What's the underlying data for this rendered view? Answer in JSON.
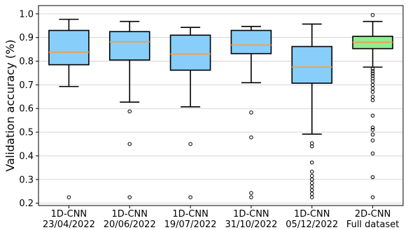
{
  "chart_data": {
    "type": "box",
    "title": "",
    "xlabel": "",
    "ylabel": "Validation accuracy (%)",
    "ylim": [
      0.19,
      1.035
    ],
    "y_ticks": [
      "0.2",
      "0.3",
      "0.4",
      "0.5",
      "0.6",
      "0.7",
      "0.8",
      "0.9",
      "1.0"
    ],
    "grid": "horizontal",
    "categories": [
      [
        "1D-CNN",
        "23/04/2022"
      ],
      [
        "1D-CNN",
        "20/06/2022"
      ],
      [
        "1D-CNN",
        "19/07/2022"
      ],
      [
        "1D-CNN",
        "31/10/2022"
      ],
      [
        "1D-CNN",
        "05/12/2022"
      ],
      [
        "2D-CNN",
        "Full dataset"
      ]
    ],
    "boxes": [
      {
        "whisker_low": 0.693,
        "q1": 0.785,
        "median": 0.838,
        "q3": 0.93,
        "whisker_high": 0.977,
        "outliers": [
          0.225
        ],
        "color": "#87cefa"
      },
      {
        "whisker_low": 0.627,
        "q1": 0.805,
        "median": 0.882,
        "q3": 0.925,
        "whisker_high": 0.968,
        "outliers": [
          0.588,
          0.45,
          0.225
        ],
        "color": "#87cefa"
      },
      {
        "whisker_low": 0.607,
        "q1": 0.762,
        "median": 0.83,
        "q3": 0.91,
        "whisker_high": 0.943,
        "outliers": [
          0.45,
          0.225
        ],
        "color": "#87cefa"
      },
      {
        "whisker_low": 0.709,
        "q1": 0.832,
        "median": 0.868,
        "q3": 0.93,
        "whisker_high": 0.947,
        "outliers": [
          0.583,
          0.478,
          0.243,
          0.225
        ],
        "color": "#87cefa"
      },
      {
        "whisker_low": 0.492,
        "q1": 0.707,
        "median": 0.775,
        "q3": 0.862,
        "whisker_high": 0.957,
        "outliers": [
          0.453,
          0.44,
          0.372,
          0.333,
          0.315,
          0.3,
          0.285,
          0.27,
          0.255,
          0.24,
          0.225
        ],
        "color": "#87cefa"
      },
      {
        "whisker_low": 0.775,
        "q1": 0.853,
        "median": 0.88,
        "q3": 0.905,
        "whisker_high": 0.968,
        "outliers": [
          0.995,
          0.768,
          0.758,
          0.748,
          0.738,
          0.727,
          0.715,
          0.7,
          0.685,
          0.67,
          0.65,
          0.635,
          0.57,
          0.52,
          0.51,
          0.49,
          0.465,
          0.41,
          0.31,
          0.225
        ],
        "color": "#90ee90"
      }
    ],
    "colors": {
      "median": "#f0a050",
      "edge": "#000000",
      "grid": "#cccccc"
    }
  }
}
